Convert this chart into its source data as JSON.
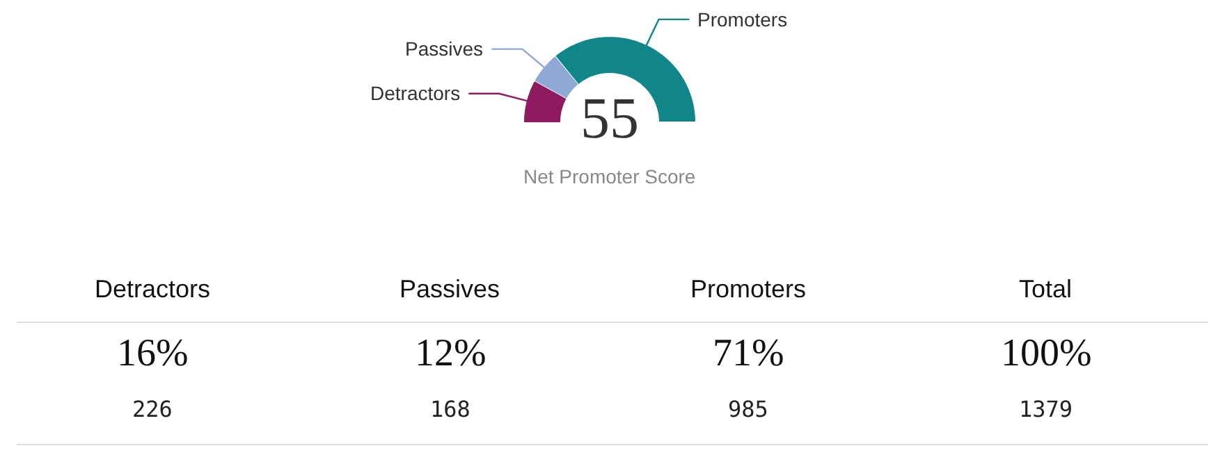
{
  "chart_data": [
    {
      "type": "donut",
      "title": "Net Promoter Score",
      "categories": [
        "Detractors",
        "Passives",
        "Promoters"
      ],
      "values": [
        16,
        12,
        71
      ],
      "colors": [
        "#8e1b5f",
        "#8fa8d6",
        "#10858a"
      ],
      "annotations": [
        "55"
      ]
    },
    {
      "type": "other",
      "categories": [
        "Detractors",
        "Passives",
        "Promoters",
        "Total"
      ],
      "values": [
        226,
        168,
        985,
        1379
      ],
      "data_labels": true,
      "annotations": [
        "16%",
        "12%",
        "71%",
        "100%"
      ]
    }
  ]
}
